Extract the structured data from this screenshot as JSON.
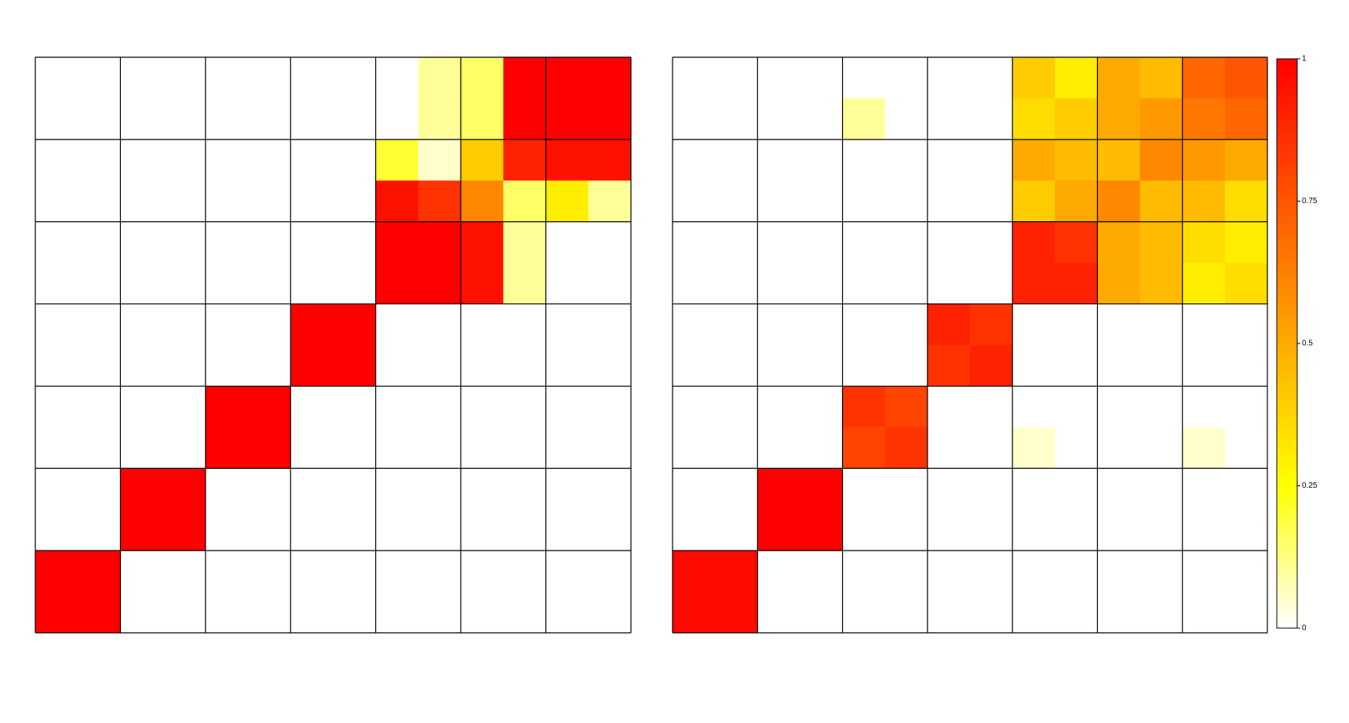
{
  "chart_data": [
    {
      "type": "heatmap",
      "blocks": 7,
      "zlim": [
        0,
        1
      ],
      "colorscale": [
        [
          0,
          "#ffffff"
        ],
        [
          0.25,
          "#ffff00"
        ],
        [
          1,
          "#ff0000"
        ]
      ],
      "z": [
        [
          0,
          0,
          0,
          0,
          0,
          0,
          0,
          0,
          0,
          0.1,
          0.15,
          1,
          1,
          1
        ],
        [
          0,
          0,
          0,
          0,
          0,
          0,
          0,
          0,
          0,
          0.1,
          0.15,
          1,
          1,
          1
        ],
        [
          0,
          0,
          0,
          0,
          0,
          0,
          0,
          0,
          0.2,
          0.05,
          0.4,
          0.9,
          0.95,
          0.95
        ],
        [
          0,
          0,
          0,
          0,
          0,
          0,
          0,
          0,
          0.95,
          0.85,
          0.6,
          0.15,
          0.3,
          0.1
        ],
        [
          0,
          0,
          0,
          0,
          0,
          0,
          0,
          0,
          1,
          1,
          0.95,
          0.1,
          0,
          0
        ],
        [
          0,
          0,
          0,
          0,
          0,
          0,
          0,
          0,
          1,
          1,
          0.95,
          0.1,
          0,
          0
        ],
        [
          0,
          0,
          0,
          0,
          0,
          0,
          1,
          1,
          0,
          0,
          0,
          0,
          0,
          0
        ],
        [
          0,
          0,
          0,
          0,
          0,
          0,
          1,
          1,
          0,
          0,
          0,
          0,
          0,
          0
        ],
        [
          0,
          0,
          0,
          0,
          1,
          1,
          0,
          0,
          0,
          0,
          0,
          0,
          0,
          0
        ],
        [
          0,
          0,
          0,
          0,
          1,
          1,
          0,
          0,
          0,
          0,
          0,
          0,
          0,
          0
        ],
        [
          0,
          0,
          1,
          1,
          0,
          0,
          0,
          0,
          0,
          0,
          0,
          0,
          0,
          0
        ],
        [
          0,
          0,
          1,
          1,
          0,
          0,
          0,
          0,
          0,
          0,
          0,
          0,
          0,
          0
        ],
        [
          1,
          1,
          0,
          0,
          0,
          0,
          0,
          0,
          0,
          0,
          0,
          0,
          0,
          0
        ],
        [
          1,
          1,
          0,
          0,
          0,
          0,
          0,
          0,
          0,
          0,
          0,
          0,
          0,
          0
        ]
      ]
    },
    {
      "type": "heatmap",
      "blocks": 7,
      "zlim": [
        0,
        1
      ],
      "colorscale": [
        [
          0,
          "#ffffff"
        ],
        [
          0.25,
          "#ffff00"
        ],
        [
          1,
          "#ff0000"
        ]
      ],
      "zticks": [
        0,
        0.25,
        0.5,
        0.75,
        1
      ],
      "z": [
        [
          0,
          0,
          0,
          0,
          0,
          0,
          0,
          0,
          0.4,
          0.3,
          0.5,
          0.45,
          0.7,
          0.75
        ],
        [
          0,
          0,
          0,
          0,
          0.1,
          0,
          0,
          0,
          0.35,
          0.4,
          0.5,
          0.55,
          0.65,
          0.7
        ],
        [
          0,
          0,
          0,
          0,
          0,
          0,
          0,
          0,
          0.5,
          0.45,
          0.45,
          0.6,
          0.55,
          0.5
        ],
        [
          0,
          0,
          0,
          0,
          0,
          0,
          0,
          0,
          0.4,
          0.5,
          0.6,
          0.45,
          0.45,
          0.35
        ],
        [
          0,
          0,
          0,
          0,
          0,
          0,
          0,
          0,
          0.9,
          0.85,
          0.5,
          0.45,
          0.35,
          0.3
        ],
        [
          0,
          0,
          0,
          0,
          0,
          0,
          0,
          0,
          0.9,
          0.9,
          0.5,
          0.45,
          0.3,
          0.35
        ],
        [
          0,
          0,
          0,
          0,
          0,
          0,
          0.9,
          0.85,
          0,
          0,
          0,
          0,
          0,
          0
        ],
        [
          0,
          0,
          0,
          0,
          0,
          0,
          0.85,
          0.9,
          0,
          0,
          0,
          0,
          0,
          0
        ],
        [
          0,
          0,
          0,
          0,
          0.85,
          0.8,
          0,
          0,
          0,
          0,
          0,
          0,
          0,
          0
        ],
        [
          0,
          0,
          0,
          0,
          0.8,
          0.85,
          0,
          0,
          0.05,
          0,
          0,
          0,
          0.05,
          0
        ],
        [
          0,
          0,
          1,
          1,
          0,
          0,
          0,
          0,
          0,
          0,
          0,
          0,
          0,
          0
        ],
        [
          0,
          0,
          1,
          1,
          0,
          0,
          0,
          0,
          0,
          0,
          0,
          0,
          0,
          0
        ],
        [
          0.97,
          0.97,
          0,
          0,
          0,
          0,
          0,
          0,
          0,
          0,
          0,
          0,
          0,
          0
        ],
        [
          0.97,
          0.97,
          0,
          0,
          0,
          0,
          0,
          0,
          0,
          0,
          0,
          0,
          0,
          0
        ]
      ]
    }
  ]
}
